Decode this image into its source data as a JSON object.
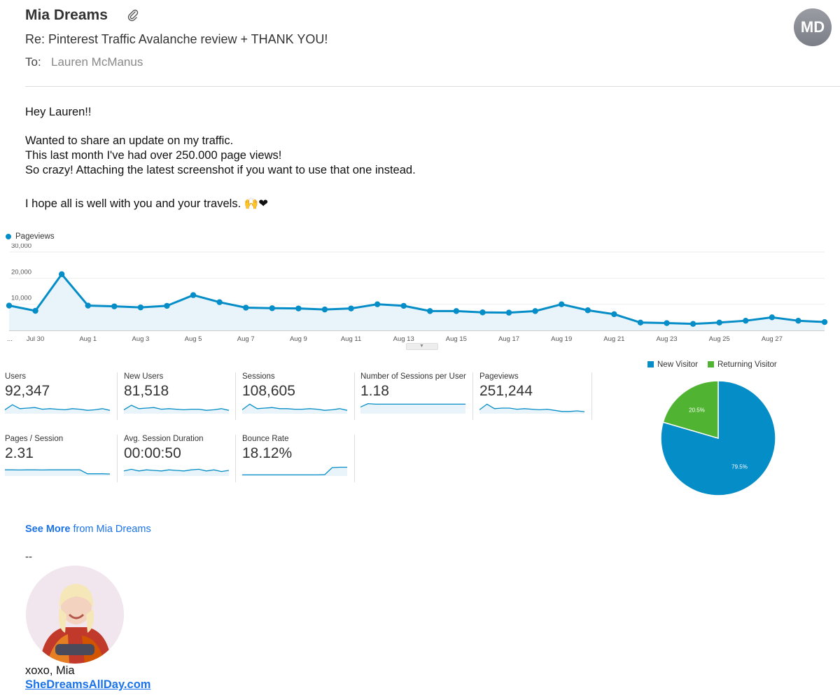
{
  "email": {
    "sender": "Mia Dreams",
    "avatar_initials": "MD",
    "subject": "Re: Pinterest Traffic Avalanche review + THANK YOU!",
    "to_label": "To:",
    "to_value": "Lauren McManus"
  },
  "body": {
    "greeting": "Hey Lauren!!",
    "line1": "Wanted to share an update on my traffic.",
    "line2": "This last month I've had over 250.000 page views!",
    "line3": "So crazy! Attaching the latest screenshot if you want to use that one instead.",
    "line4": "I hope all is well with you and your travels. 🙌❤"
  },
  "chart_data": [
    {
      "type": "line",
      "legend": "Pageviews",
      "yticks": [
        "30,000",
        "20,000",
        "10,000"
      ],
      "ylim": [
        0,
        30000
      ],
      "xtick_labels": [
        "...",
        "Jul 30",
        "Aug 1",
        "Aug 3",
        "Aug 5",
        "Aug 7",
        "Aug 9",
        "Aug 11",
        "Aug 13",
        "Aug 15",
        "Aug 17",
        "Aug 19",
        "Aug 21",
        "Aug 23",
        "Aug 25",
        "Aug 27"
      ],
      "series": [
        {
          "name": "Pageviews",
          "color": "#058dc7",
          "values": [
            9500,
            7500,
            21500,
            9500,
            9200,
            8800,
            9400,
            13500,
            10800,
            8700,
            8500,
            8400,
            8000,
            8400,
            10000,
            9400,
            7400,
            7400,
            6900,
            6800,
            7400,
            10000,
            7700,
            6200,
            3000,
            2800,
            2500,
            3000,
            3700,
            5000,
            3700,
            3200
          ]
        }
      ]
    },
    {
      "type": "pie",
      "legend_position": "top",
      "slices": [
        {
          "name": "New Visitor",
          "value": 79.5,
          "label": "79.5%",
          "color": "#058dc7"
        },
        {
          "name": "Returning Visitor",
          "value": 20.5,
          "label": "20.5%",
          "color": "#50b432"
        }
      ]
    }
  ],
  "metrics": [
    {
      "label": "Users",
      "value": "92,347",
      "spark": [
        0.35,
        0.8,
        0.45,
        0.5,
        0.55,
        0.4,
        0.45,
        0.4,
        0.35,
        0.45,
        0.4,
        0.3,
        0.35,
        0.45,
        0.3
      ]
    },
    {
      "label": "New Users",
      "value": "81,518",
      "spark": [
        0.35,
        0.75,
        0.45,
        0.5,
        0.55,
        0.4,
        0.45,
        0.4,
        0.35,
        0.4,
        0.4,
        0.3,
        0.35,
        0.45,
        0.3
      ]
    },
    {
      "label": "Sessions",
      "value": "108,605",
      "spark": [
        0.35,
        0.85,
        0.45,
        0.5,
        0.55,
        0.45,
        0.45,
        0.4,
        0.4,
        0.45,
        0.4,
        0.3,
        0.35,
        0.45,
        0.3
      ]
    },
    {
      "label": "Number of Sessions per User",
      "value": "1.18",
      "spark": [
        0.6,
        0.9,
        0.85,
        0.85,
        0.85,
        0.85,
        0.85,
        0.85,
        0.85,
        0.85,
        0.85,
        0.85,
        0.85,
        0.85,
        0.85
      ]
    },
    {
      "label": "Pageviews",
      "value": "251,244",
      "spark": [
        0.35,
        0.85,
        0.45,
        0.5,
        0.5,
        0.4,
        0.45,
        0.4,
        0.35,
        0.4,
        0.3,
        0.2,
        0.2,
        0.25,
        0.18
      ]
    },
    {
      "label": "Pages / Session",
      "value": "2.31",
      "spark": [
        0.55,
        0.55,
        0.54,
        0.55,
        0.55,
        0.54,
        0.55,
        0.55,
        0.55,
        0.55,
        0.55,
        0.2,
        0.2,
        0.2,
        0.18
      ]
    },
    {
      "label": "Avg. Session Duration",
      "value": "00:00:50",
      "spark": [
        0.45,
        0.6,
        0.45,
        0.55,
        0.5,
        0.45,
        0.55,
        0.5,
        0.45,
        0.55,
        0.6,
        0.45,
        0.55,
        0.4,
        0.5
      ]
    },
    {
      "label": "Bounce Rate",
      "value": "18.12%",
      "spark": [
        0.1,
        0.1,
        0.1,
        0.1,
        0.1,
        0.1,
        0.1,
        0.1,
        0.1,
        0.1,
        0.1,
        0.12,
        0.75,
        0.78,
        0.78
      ]
    }
  ],
  "footer": {
    "see_more_bold": "See More",
    "see_more_rest": " from Mia Dreams",
    "dashes": "--",
    "signoff": "xoxo, Mia",
    "site": "SheDreamsAllDay.com"
  }
}
